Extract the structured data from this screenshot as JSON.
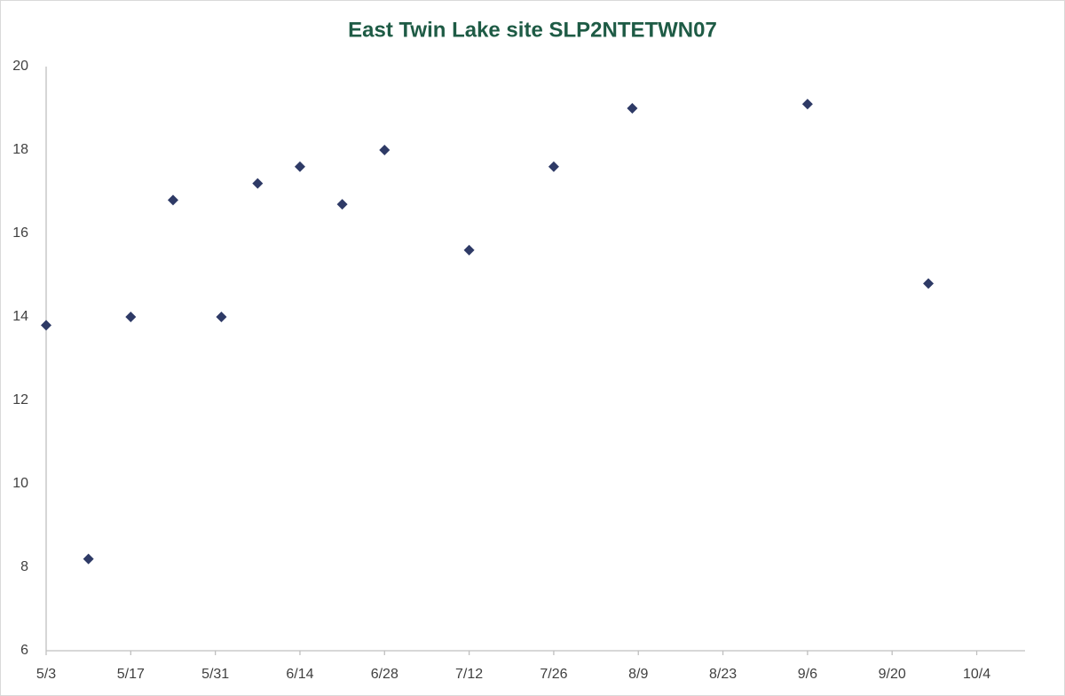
{
  "chart_data": {
    "type": "scatter",
    "title": "East Twin Lake site SLP2NTETWN07",
    "x": [
      "5/3",
      "5/10",
      "5/17",
      "5/24",
      "6/1",
      "6/7",
      "6/14",
      "6/21",
      "6/28",
      "7/12",
      "7/26",
      "8/8",
      "9/6",
      "9/26"
    ],
    "series": [
      {
        "color": "#2e3a66",
        "values": [
          13.8,
          8.2,
          14.0,
          16.8,
          14.0,
          17.2,
          17.6,
          16.7,
          18.0,
          15.6,
          17.6,
          19.0,
          19.1,
          14.8
        ]
      }
    ],
    "xlim": [
      "5/3",
      "10/12"
    ],
    "xticks": [
      "5/3",
      "5/17",
      "5/31",
      "6/14",
      "6/28",
      "7/12",
      "7/26",
      "8/9",
      "8/23",
      "9/6",
      "9/20",
      "10/4"
    ],
    "ylim": [
      6,
      20
    ],
    "yticks": [
      6,
      8,
      10,
      12,
      14,
      16,
      18,
      20
    ],
    "grid": false
  }
}
